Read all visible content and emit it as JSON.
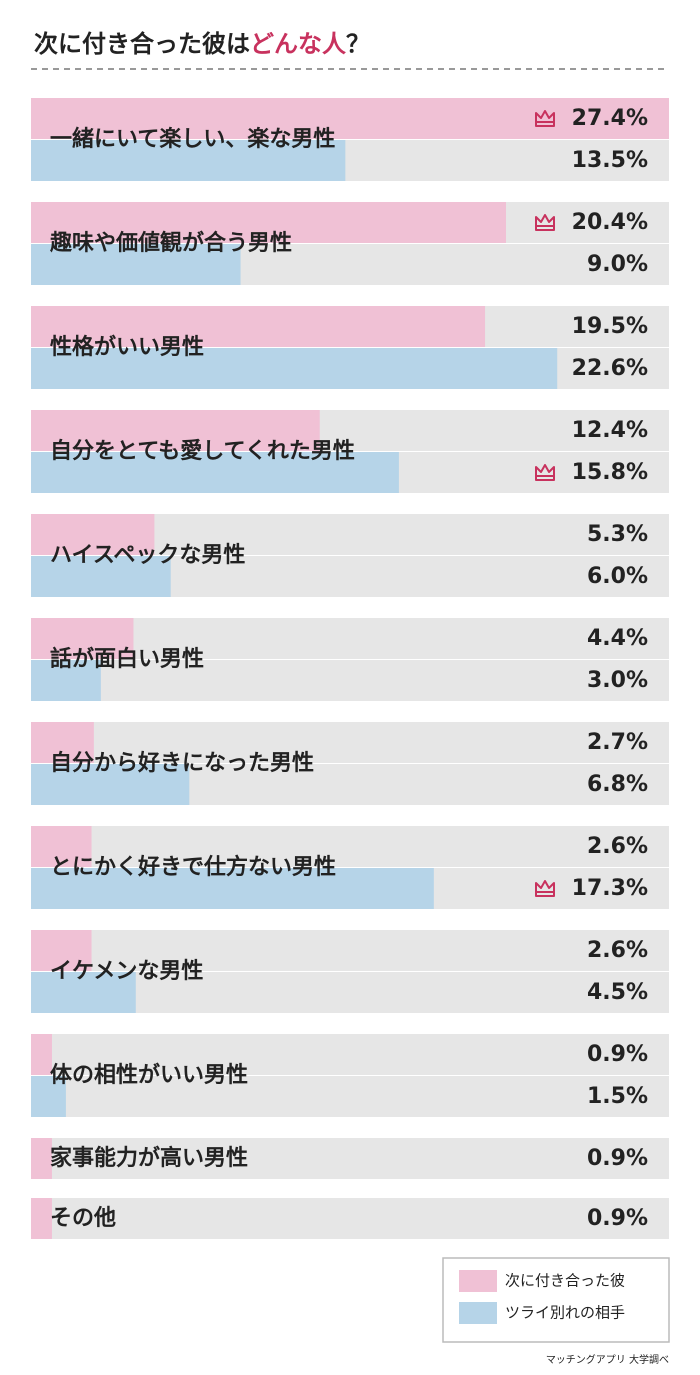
{
  "chart_data": {
    "type": "grouped-hbar",
    "title": [
      "次に付き合った彼は",
      "どんな人",
      "？"
    ],
    "title_highlight_color": "#c8325e",
    "categories": [
      "一緒にいて楽しい、楽な男性",
      "趣味や価値観が合う男性",
      "性格がいい男性",
      "自分をとても愛してくれた男性",
      "ハイスペックな男性",
      "話が面白い男性",
      "自分から好きになった男性",
      "とにかく好きで仕方ない男性",
      "イケメンな男性",
      "体の相性がいい男性",
      "家事能力が高い男性",
      "その他"
    ],
    "series": [
      {
        "name": "次に付き合った彼",
        "color": "#f0c1d5",
        "values": [
          27.4,
          20.4,
          19.5,
          12.4,
          5.3,
          4.4,
          2.7,
          2.6,
          2.6,
          0.9,
          0.9,
          0.9
        ],
        "value_labels": [
          "27.4%",
          "20.4%",
          "19.5%",
          "12.4%",
          "5.3%",
          "4.4%",
          "2.7%",
          "2.6%",
          "2.6%",
          "0.9%",
          "0.9%",
          "0.9%"
        ],
        "crowned": [
          true,
          true,
          false,
          false,
          false,
          false,
          false,
          false,
          false,
          false,
          false,
          false
        ]
      },
      {
        "name": "ツライ別れの相手",
        "color": "#b6d4e8",
        "values": [
          13.5,
          9.0,
          22.6,
          15.8,
          6.0,
          3.0,
          6.8,
          17.3,
          4.5,
          1.5,
          null,
          null
        ],
        "value_labels": [
          "13.5%",
          "9.0%",
          "22.6%",
          "15.8%",
          "6.0%",
          "3.0%",
          "6.8%",
          "17.3%",
          "4.5%",
          "1.5%",
          null,
          null
        ],
        "crowned": [
          false,
          false,
          false,
          true,
          false,
          false,
          false,
          true,
          false,
          false,
          false,
          false
        ]
      }
    ],
    "xlim": [
      0,
      27.4
    ],
    "crown_color": "#c8325e",
    "source": "マッチングアプリ 大学調べ"
  }
}
